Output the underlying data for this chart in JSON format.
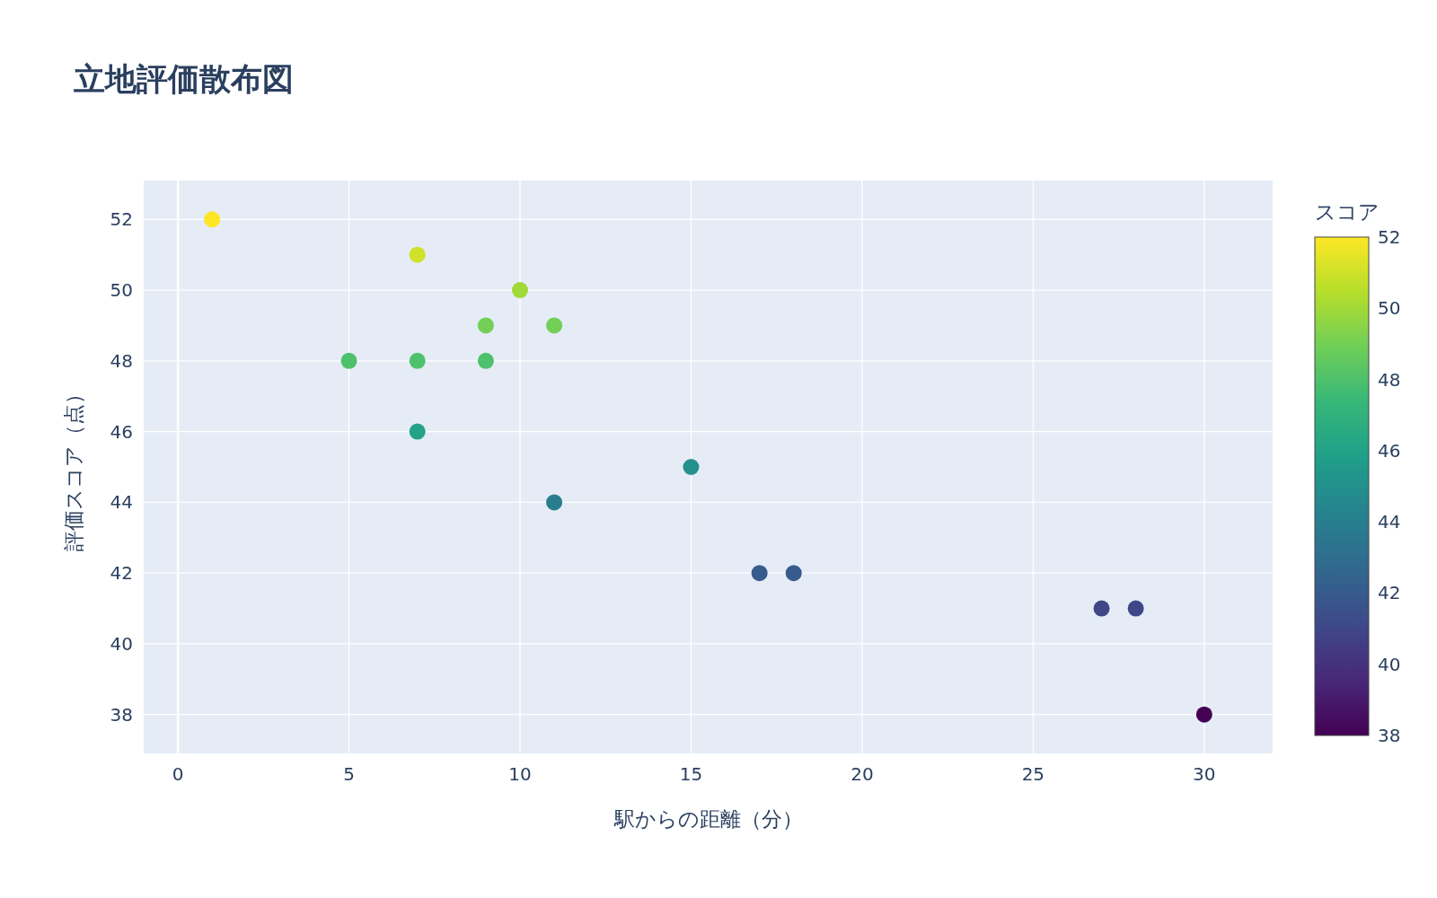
{
  "chart_data": {
    "type": "scatter",
    "title": "立地評価散布図",
    "xlabel": "駅からの距離（分）",
    "ylabel": "評価スコア（点）",
    "clabel": "スコア",
    "x": [
      1,
      7,
      10,
      9,
      11,
      5,
      7,
      9,
      7,
      15,
      11,
      17,
      18,
      27,
      28,
      30
    ],
    "values": [
      52,
      51,
      50,
      49,
      49,
      48,
      48,
      48,
      46,
      45,
      44,
      42,
      42,
      41,
      41,
      38
    ],
    "cvalues": [
      52,
      51,
      50,
      49,
      49,
      48,
      48,
      48,
      46,
      45,
      44,
      42,
      42,
      41,
      41,
      38
    ],
    "xlim": [
      -1,
      32
    ],
    "ylim": [
      36.9,
      53.1
    ],
    "xticks": [
      0,
      5,
      10,
      15,
      20,
      25,
      30
    ],
    "yticks": [
      38,
      40,
      42,
      44,
      46,
      48,
      50,
      52
    ],
    "clim": [
      38,
      52
    ],
    "cticks": [
      38,
      40,
      42,
      44,
      46,
      48,
      50,
      52
    ],
    "grid": true,
    "marker": "circle"
  }
}
